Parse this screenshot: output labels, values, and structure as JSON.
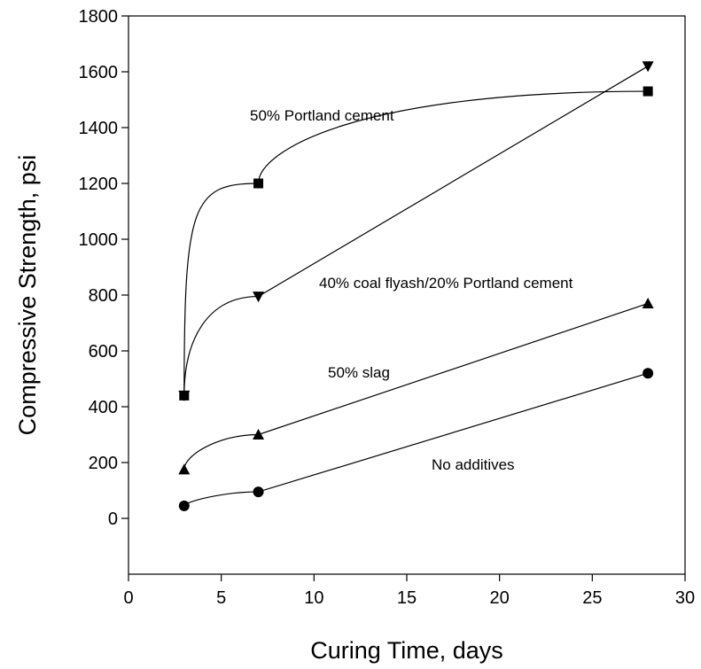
{
  "chart_data": {
    "type": "scatter",
    "title": "",
    "xlabel": "Curing Time, days",
    "ylabel": "Compressive Strength, psi",
    "xlim": [
      0,
      30
    ],
    "ylim": [
      -200,
      1800
    ],
    "xticks": [
      0,
      5,
      10,
      15,
      20,
      25,
      30
    ],
    "yticks": [
      0,
      200,
      400,
      600,
      800,
      1000,
      1200,
      1400,
      1600,
      1800
    ],
    "grid": false,
    "legend": "none",
    "series": [
      {
        "name": "50% Portland cement",
        "marker": "square",
        "x": [
          3,
          7,
          28
        ],
        "y": [
          440,
          1200,
          1530
        ]
      },
      {
        "name": "40% coal flyash/20% Portland cement",
        "marker": "triangle-down",
        "x": [
          3,
          7,
          28
        ],
        "y": [
          440,
          795,
          1620
        ]
      },
      {
        "name": "50% slag",
        "marker": "triangle-up",
        "x": [
          3,
          7,
          28
        ],
        "y": [
          175,
          300,
          770
        ]
      },
      {
        "name": "No additives",
        "marker": "circle",
        "x": [
          3,
          7,
          28
        ],
        "y": [
          45,
          95,
          520
        ]
      }
    ]
  }
}
